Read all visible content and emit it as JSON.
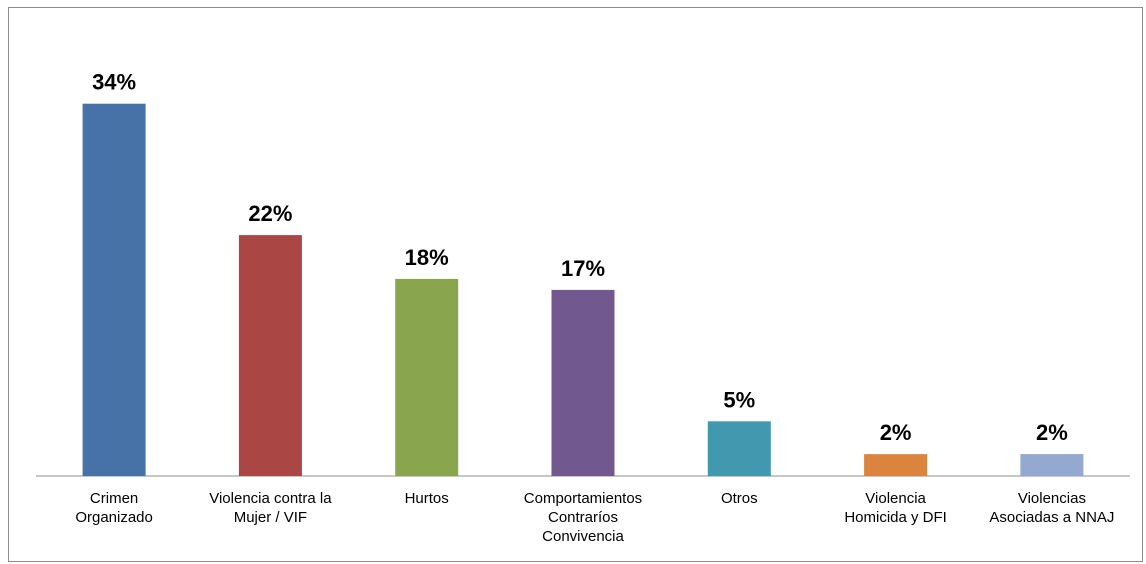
{
  "chart_data": {
    "type": "bar",
    "categories": [
      [
        "Crimen",
        "Organizado"
      ],
      [
        "Violencia contra la",
        "Mujer / VIF"
      ],
      [
        "Hurtos"
      ],
      [
        "Comportamientos",
        "Contraríos",
        "Convivencia"
      ],
      [
        "Otros"
      ],
      [
        "Violencia",
        "Homicida y DFI"
      ],
      [
        "Violencias",
        "Asociadas a NNAJ"
      ]
    ],
    "values": [
      34,
      22,
      18,
      17,
      5,
      2,
      2
    ],
    "value_labels": [
      "34%",
      "22%",
      "18%",
      "17%",
      "5%",
      "2%",
      "2%"
    ],
    "colors": [
      "#4672a8",
      "#aa4744",
      "#89a54e",
      "#71588f",
      "#4198af",
      "#db843d",
      "#93a9cf"
    ],
    "ylim": [
      0,
      36
    ],
    "grid": false,
    "legend": "none"
  }
}
